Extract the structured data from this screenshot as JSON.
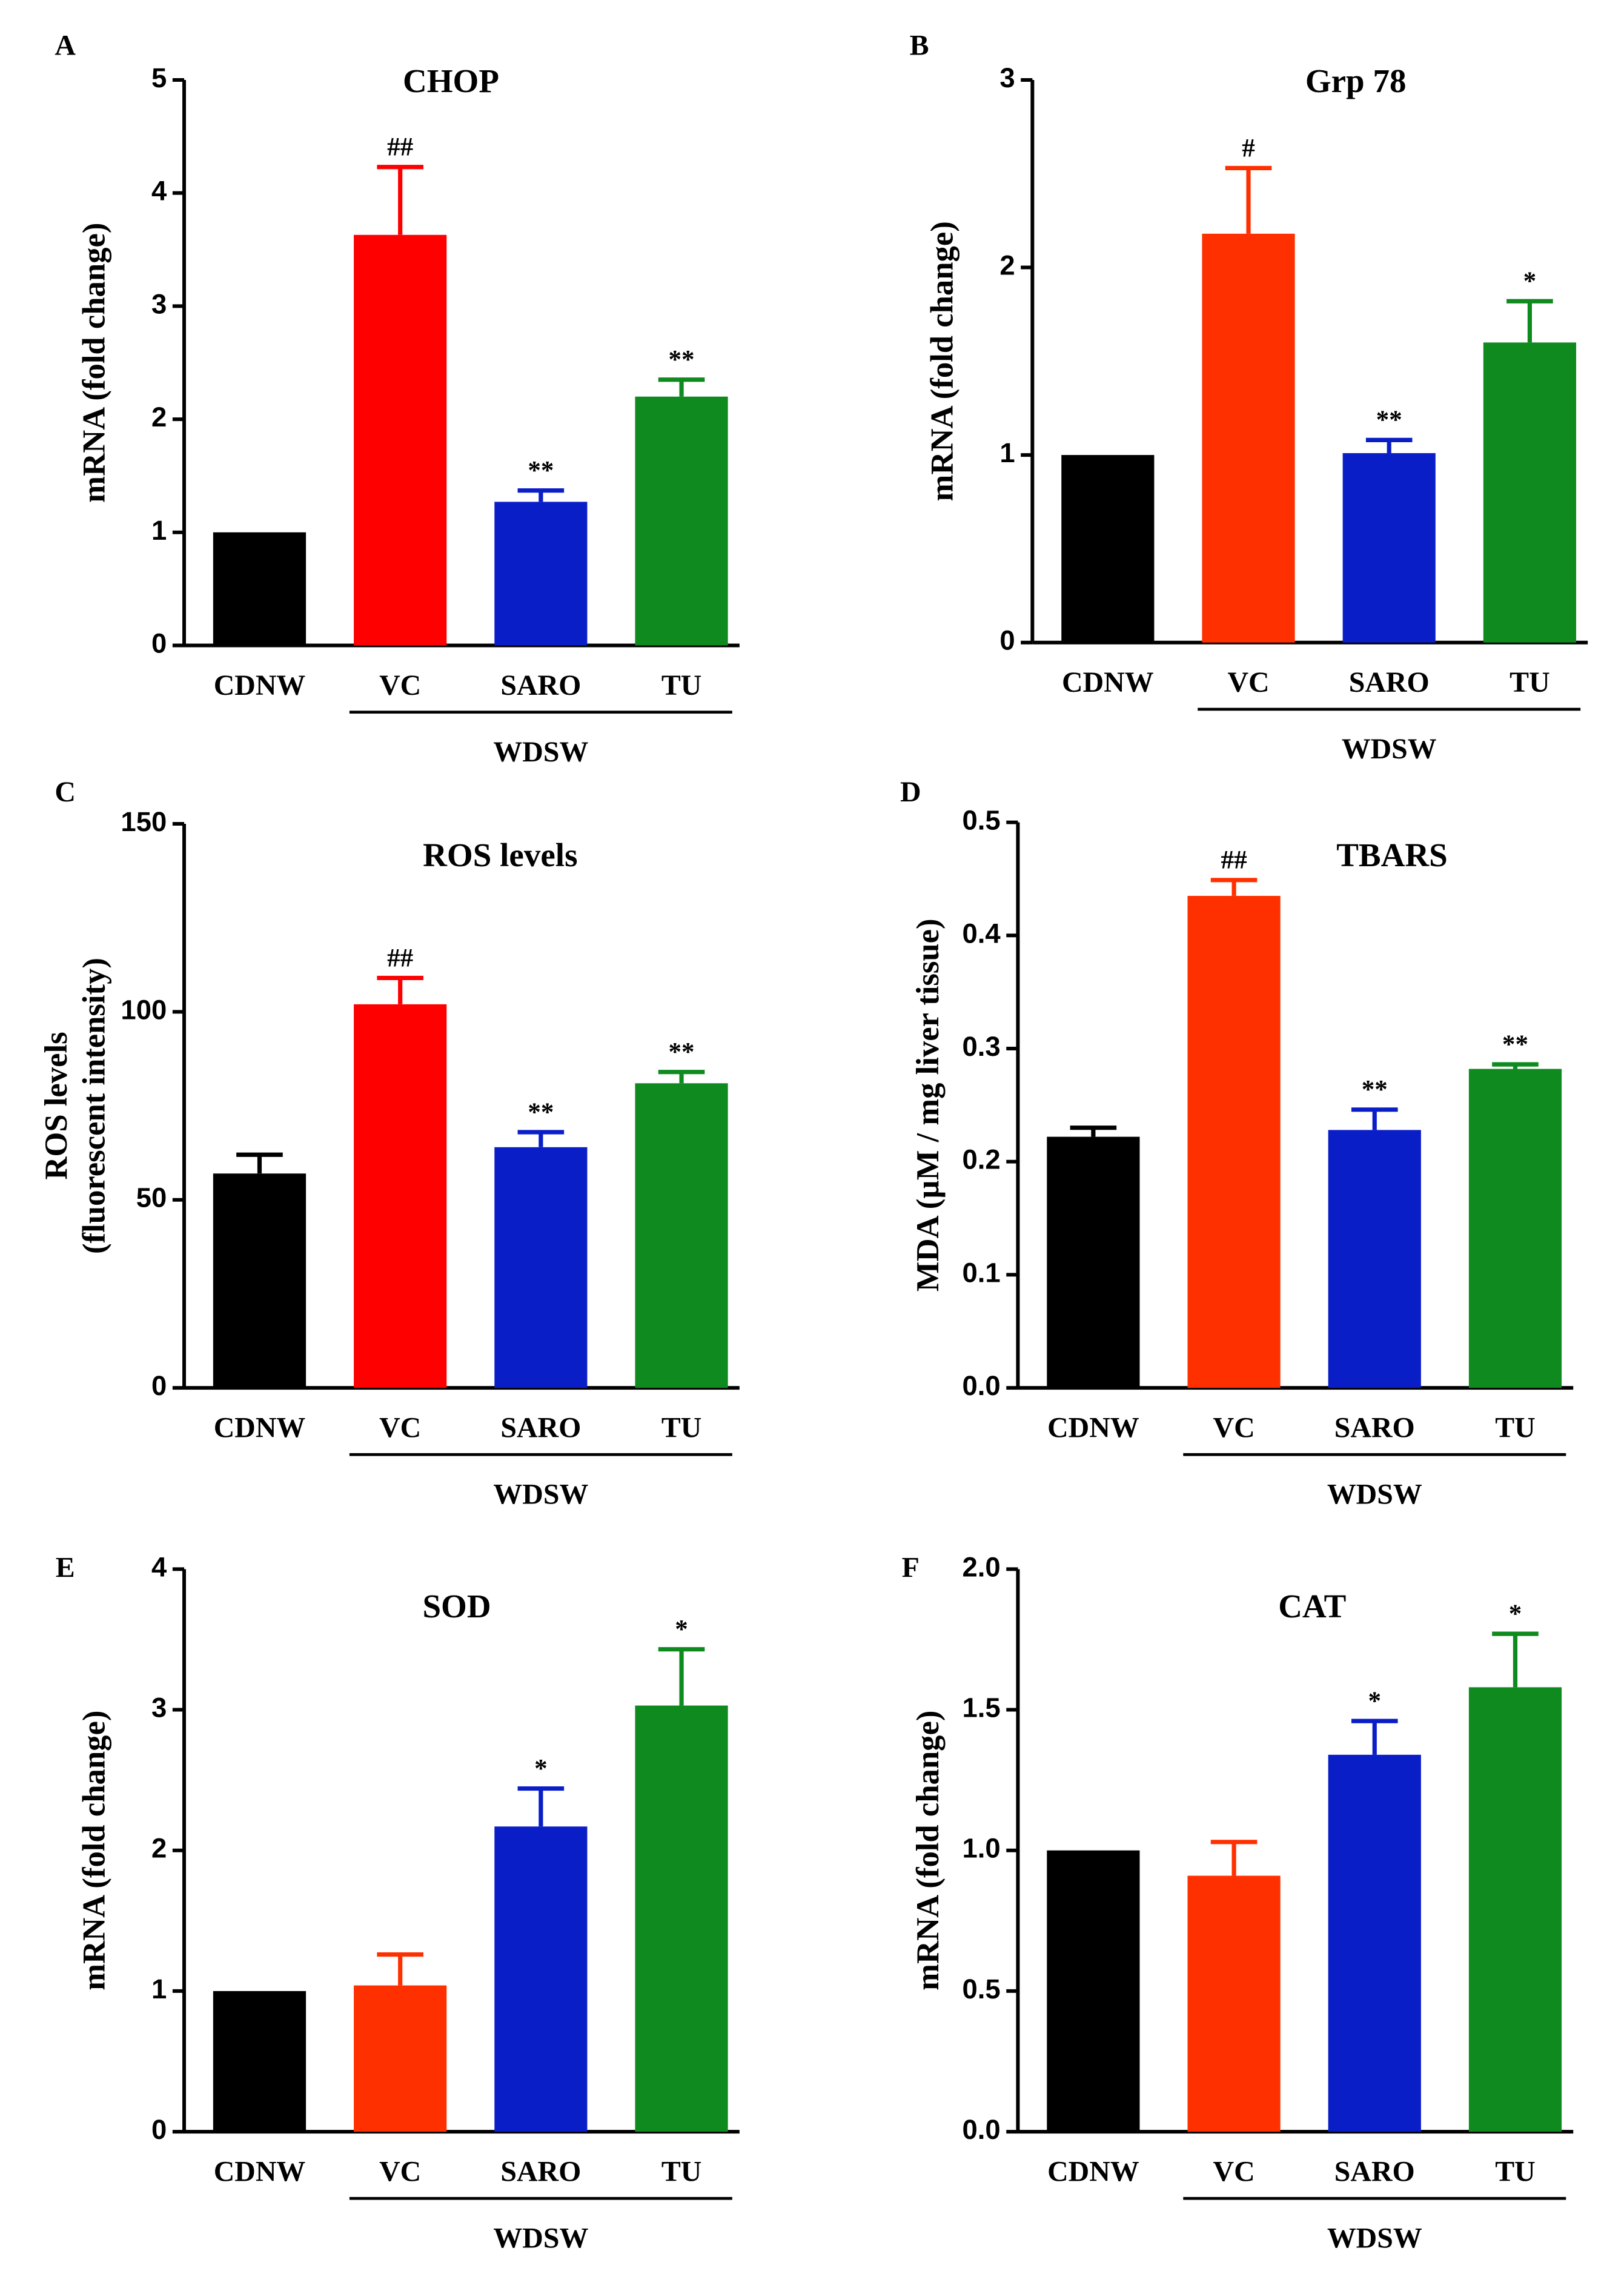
{
  "chart_data": [
    {
      "panel": "A",
      "type": "bar",
      "title": "CHOP",
      "ylabel": [
        "mRNA (fold change)"
      ],
      "ylim": [
        0,
        5
      ],
      "yticks": [
        "0",
        "1",
        "2",
        "3",
        "4",
        "5"
      ],
      "tickvals": [
        0,
        1,
        2,
        3,
        4,
        5
      ],
      "categories": [
        "CDNW",
        "VC",
        "SARO",
        "TU"
      ],
      "values": [
        1,
        3.63,
        1.27,
        2.2
      ],
      "errors": [
        0,
        0.6,
        0.1,
        0.15
      ],
      "annotations": [
        "",
        "##",
        "**",
        "**"
      ],
      "colors": [
        "#000000",
        "#ff0000",
        "#0a1ec8",
        "#0f8a1e"
      ],
      "group_label": "WDSW"
    },
    {
      "panel": "B",
      "type": "bar",
      "title": "Grp 78",
      "ylabel": [
        "mRNA (fold change)"
      ],
      "ylim": [
        0,
        3
      ],
      "yticks": [
        "0",
        "1",
        "2",
        "3"
      ],
      "tickvals": [
        0,
        1,
        2,
        3
      ],
      "categories": [
        "CDNW",
        "VC",
        "SARO",
        "TU"
      ],
      "values": [
        1,
        2.18,
        1.01,
        1.6
      ],
      "errors": [
        0,
        0.35,
        0.07,
        0.22
      ],
      "annotations": [
        "",
        "#",
        "**",
        "*"
      ],
      "colors": [
        "#000000",
        "#ff3000",
        "#0a1ec8",
        "#0f8a1e"
      ],
      "group_label": "WDSW"
    },
    {
      "panel": "C",
      "type": "bar",
      "title": "ROS levels",
      "ylabel": [
        "ROS levels",
        "(fluorescent intensity)"
      ],
      "ylim": [
        0,
        150
      ],
      "yticks": [
        "0",
        "50",
        "100",
        "150"
      ],
      "tickvals": [
        0,
        50,
        100,
        150
      ],
      "categories": [
        "CDNW",
        "VC",
        "SARO",
        "TU"
      ],
      "values": [
        57,
        102,
        64,
        81
      ],
      "errors": [
        5,
        7,
        4,
        3
      ],
      "annotations": [
        "",
        "##",
        "**",
        "**"
      ],
      "colors": [
        "#000000",
        "#ff0000",
        "#0a1ec8",
        "#0f8a1e"
      ],
      "group_label": "WDSW"
    },
    {
      "panel": "D",
      "type": "bar",
      "title": "TBARS",
      "ylabel": [
        "MDA (µM / mg liver tissue)"
      ],
      "ylim": [
        0,
        0.5
      ],
      "yticks": [
        "0.0",
        "0.1",
        "0.2",
        "0.3",
        "0.4",
        "0.5"
      ],
      "tickvals": [
        0,
        0.1,
        0.2,
        0.3,
        0.4,
        0.5
      ],
      "categories": [
        "CDNW",
        "VC",
        "SARO",
        "TU"
      ],
      "values": [
        0.222,
        0.435,
        0.228,
        0.282
      ],
      "errors": [
        0.008,
        0.014,
        0.018,
        0.004
      ],
      "annotations": [
        "",
        "##",
        "**",
        "**"
      ],
      "colors": [
        "#000000",
        "#ff3000",
        "#0a1ec8",
        "#0f8a1e"
      ],
      "group_label": "WDSW"
    },
    {
      "panel": "E",
      "type": "bar",
      "title": "SOD",
      "ylabel": [
        "mRNA (fold change)"
      ],
      "ylim": [
        0,
        4
      ],
      "yticks": [
        "0",
        "1",
        "2",
        "3",
        "4"
      ],
      "tickvals": [
        0,
        1,
        2,
        3,
        4
      ],
      "categories": [
        "CDNW",
        "VC",
        "SARO",
        "TU"
      ],
      "values": [
        1,
        1.04,
        2.17,
        3.03
      ],
      "errors": [
        0,
        0.22,
        0.27,
        0.4
      ],
      "annotations": [
        "",
        "",
        "*",
        "*"
      ],
      "colors": [
        "#000000",
        "#ff3000",
        "#0a1ec8",
        "#0f8a1e"
      ],
      "group_label": "WDSW"
    },
    {
      "panel": "F",
      "type": "bar",
      "title": "CAT",
      "ylabel": [
        "mRNA (fold change)"
      ],
      "ylim": [
        0,
        2
      ],
      "yticks": [
        "0.0",
        "0.5",
        "1.0",
        "1.5",
        "2.0"
      ],
      "tickvals": [
        0,
        0.5,
        1,
        1.5,
        2
      ],
      "categories": [
        "CDNW",
        "VC",
        "SARO",
        "TU"
      ],
      "values": [
        1,
        0.91,
        1.34,
        1.58
      ],
      "errors": [
        0,
        0.12,
        0.12,
        0.19
      ],
      "annotations": [
        "",
        "",
        "*",
        "*"
      ],
      "colors": [
        "#000000",
        "#ff3000",
        "#0a1ec8",
        "#0f8a1e"
      ],
      "group_label": "WDSW"
    }
  ]
}
